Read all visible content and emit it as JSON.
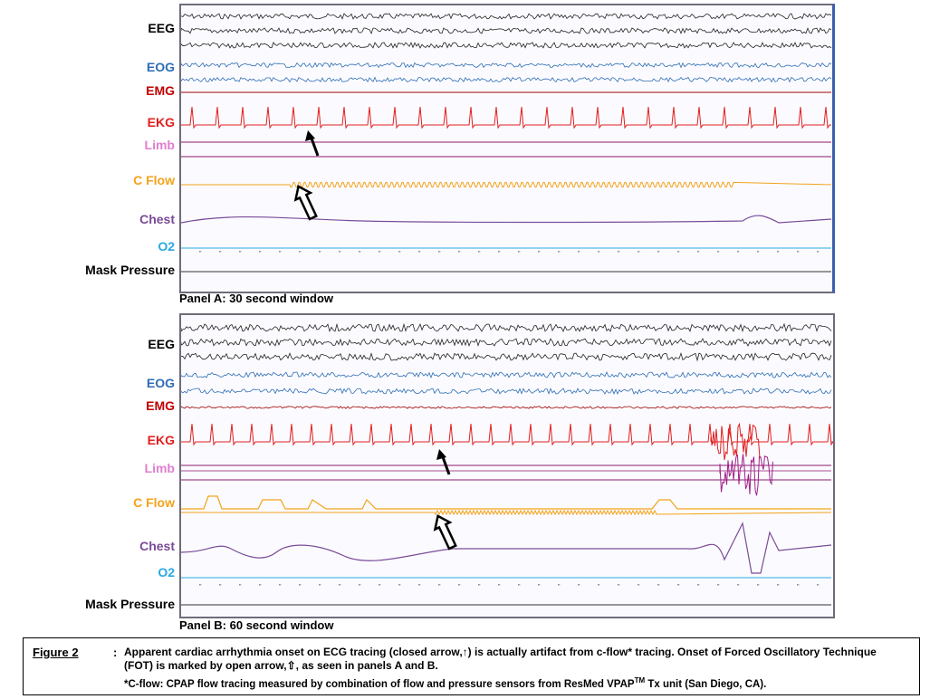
{
  "panelA": {
    "title": "Panel A: 30 second window",
    "channels": [
      {
        "name": "EEG",
        "color": "#000000"
      },
      {
        "name": "EOG",
        "color": "#2e6db4"
      },
      {
        "name": "EMG",
        "color": "#c00000"
      },
      {
        "name": "EKG",
        "color": "#e21e1e"
      },
      {
        "name": "Limb",
        "color": "#e07fcf"
      },
      {
        "name": "C Flow",
        "color": "#f4a21a"
      },
      {
        "name": "Chest",
        "color": "#7a4b98"
      },
      {
        "name": "O2",
        "color": "#27aae1"
      },
      {
        "name": "Mask Pressure",
        "color": "#000000"
      }
    ]
  },
  "panelB": {
    "title": "Panel B: 60 second window",
    "channels": [
      {
        "name": "EEG",
        "color": "#000000"
      },
      {
        "name": "EOG",
        "color": "#2e6db4"
      },
      {
        "name": "EMG",
        "color": "#c00000"
      },
      {
        "name": "EKG",
        "color": "#e21e1e"
      },
      {
        "name": "Limb",
        "color": "#e07fcf"
      },
      {
        "name": "C Flow",
        "color": "#f4a21a"
      },
      {
        "name": "Chest",
        "color": "#7a4b98"
      },
      {
        "name": "O2",
        "color": "#27aae1"
      },
      {
        "name": "Mask Pressure",
        "color": "#000000"
      }
    ]
  },
  "caption": {
    "figure_label": "Figure 2",
    "figure_colon": ":",
    "line1": "Apparent cardiac arrhythmia  onset on ECG tracing (closed arrow,↑) is actually artifact from c-flow* tracing. Onset of Forced Oscillatory Technique (FOT) is marked by open arrow,⇧,  as seen in panels A and B.",
    "line2_pre": "*C-flow: CPAP flow tracing measured by combination of flow and pressure sensors from ResMed  VPAP",
    "line2_sup": "TM",
    "line2_post": " Tx unit (San Diego, CA)."
  }
}
